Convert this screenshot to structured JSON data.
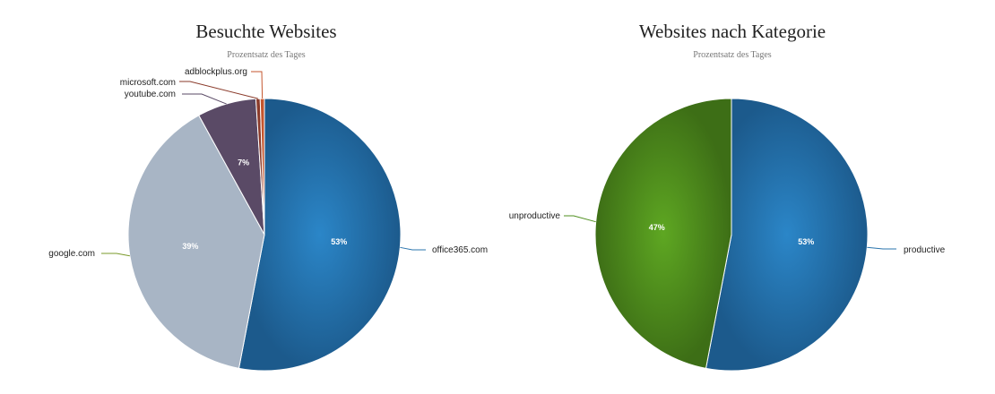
{
  "chart_data": [
    {
      "type": "pie",
      "title": "Besuchte Websites",
      "subtitle": "Prozentsatz des Tages",
      "slices": [
        {
          "name": "office365.com",
          "value": 53,
          "label": "53%",
          "color": "#2a74ad"
        },
        {
          "name": "google.com",
          "value": 39,
          "label": "39%",
          "color": "#a8b5c5"
        },
        {
          "name": "youtube.com",
          "value": 7,
          "label": "7%",
          "color": "#5a4a66"
        },
        {
          "name": "microsoft.com",
          "value": 0.5,
          "label": "",
          "color": "#8a3a2a"
        },
        {
          "name": "adblockplus.org",
          "value": 0.5,
          "label": "",
          "color": "#c4562e"
        }
      ]
    },
    {
      "type": "pie",
      "title": "Websites nach Kategorie",
      "subtitle": "Prozentsatz des Tages",
      "slices": [
        {
          "name": "productive",
          "value": 53,
          "label": "53%",
          "color": "#2a74ad"
        },
        {
          "name": "unproductive",
          "value": 47,
          "label": "47%",
          "color": "#4f8f1f"
        }
      ]
    }
  ]
}
